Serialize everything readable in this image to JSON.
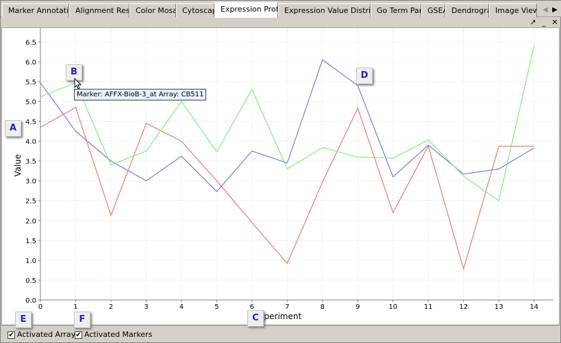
{
  "tabs": [
    {
      "label": "Marker Annotations"
    },
    {
      "label": "Alignment Results"
    },
    {
      "label": "Color Mosaic"
    },
    {
      "label": "Cytoscape"
    },
    {
      "label": "Expression Profiles"
    },
    {
      "label": "Expression Value Distribution"
    },
    {
      "label": "Go Term Panel"
    },
    {
      "label": "GSEA"
    },
    {
      "label": "Dendrogram"
    },
    {
      "label": "Image Viewer"
    }
  ],
  "active_tab": "Expression Profiles",
  "window_buttons": {
    "maximize": "↗",
    "minimize": "_",
    "close": "✕"
  },
  "tooltip": "Marker: AFFX-BioB-3_at Array: CB511",
  "callouts": {
    "a": "A",
    "b": "B",
    "c": "C",
    "d": "D",
    "e": "E",
    "f": "F"
  },
  "bottombar": {
    "activated_arrays": {
      "label": "Activated Arrays",
      "checked": true
    },
    "activated_markers": {
      "label": "Activated Markers",
      "checked": true
    }
  },
  "chart_data": {
    "type": "line",
    "xlabel": "Experiment",
    "ylabel": "Value",
    "x": [
      0,
      1,
      2,
      3,
      4,
      5,
      6,
      7,
      8,
      9,
      10,
      11,
      12,
      13,
      14
    ],
    "xlim": [
      0,
      14.55
    ],
    "ylim": [
      0,
      6.85
    ],
    "yticks": [
      0.0,
      0.5,
      1.0,
      1.5,
      2.0,
      2.5,
      3.0,
      3.5,
      4.0,
      4.5,
      5.0,
      5.5,
      6.0,
      6.5
    ],
    "ytick_labels": [
      "0.0",
      "0.5",
      "1.0",
      "1.5",
      "2.0",
      "2.5",
      "3.0",
      "3.5",
      "4.0",
      "4.5",
      "5.0",
      "5.5",
      "6.0",
      "6.5"
    ],
    "grid": true,
    "series": [
      {
        "color": "#e87878",
        "values": [
          4.35,
          4.85,
          2.13,
          4.45,
          4.0,
          3.0,
          1.95,
          0.92,
          2.97,
          4.83,
          2.2,
          3.88,
          0.78,
          3.87,
          3.87
        ]
      },
      {
        "color": "#7878e8",
        "values": [
          5.47,
          4.25,
          3.5,
          3.0,
          3.62,
          2.73,
          3.75,
          3.45,
          6.05,
          5.4,
          3.1,
          3.9,
          3.17,
          3.3,
          3.83
        ]
      },
      {
        "color": "#78f078",
        "values": [
          5.12,
          5.47,
          3.4,
          3.75,
          5.0,
          3.73,
          5.3,
          3.3,
          3.84,
          3.6,
          3.57,
          4.03,
          3.12,
          2.5,
          6.4
        ]
      }
    ]
  }
}
